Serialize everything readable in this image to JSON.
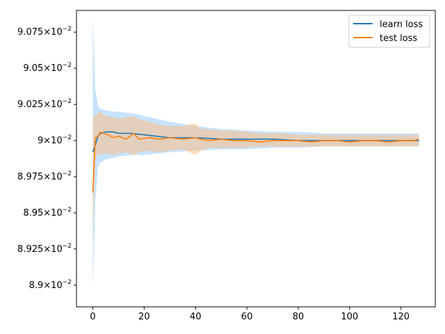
{
  "chart_data": {
    "type": "line",
    "title": "",
    "xlabel": "",
    "ylabel": "",
    "xlim": [
      -6.35,
      133.35
    ],
    "ylim": [
      0.08885,
      0.0909
    ],
    "x_ticks": [
      0,
      20,
      40,
      60,
      80,
      100,
      120
    ],
    "y_ticks": [
      {
        "value": 0.089,
        "mantissa": "8.9",
        "exponent": "−2"
      },
      {
        "value": 0.08925,
        "mantissa": "8.925",
        "exponent": "−2"
      },
      {
        "value": 0.0895,
        "mantissa": "8.95",
        "exponent": "−2"
      },
      {
        "value": 0.08975,
        "mantissa": "8.975",
        "exponent": "−2"
      },
      {
        "value": 0.09,
        "mantissa": "9",
        "exponent": "−2"
      },
      {
        "value": 0.09025,
        "mantissa": "9.025",
        "exponent": "−2"
      },
      {
        "value": 0.0905,
        "mantissa": "9.05",
        "exponent": "−2"
      },
      {
        "value": 0.09075,
        "mantissa": "9.075",
        "exponent": "−2"
      }
    ],
    "y_tick_base": "10",
    "legend_position": "top-right",
    "series": [
      {
        "name": "learn loss",
        "color": "#1f77b4",
        "band_color": "#99ccff",
        "x": [
          0,
          1,
          2,
          3,
          5,
          8,
          10,
          15,
          20,
          25,
          30,
          40,
          50,
          60,
          70,
          80,
          90,
          100,
          110,
          120,
          127
        ],
        "values": [
          0.08992,
          0.08997,
          0.09003,
          0.09005,
          0.09006,
          0.09006,
          0.09005,
          0.09005,
          0.09004,
          0.09003,
          0.09002,
          0.09002,
          0.09001,
          0.09001,
          0.09001,
          0.09,
          0.09,
          0.09,
          0.09,
          0.09,
          0.09
        ],
        "upper": [
          0.09085,
          0.09035,
          0.09024,
          0.09022,
          0.09021,
          0.0902,
          0.0902,
          0.09019,
          0.09017,
          0.09015,
          0.09013,
          0.0901,
          0.09008,
          0.09007,
          0.09006,
          0.09006,
          0.09005,
          0.09005,
          0.09005,
          0.09005,
          0.09005
        ],
        "lower": [
          0.08899,
          0.08958,
          0.08982,
          0.08985,
          0.08987,
          0.08988,
          0.08989,
          0.0899,
          0.0899,
          0.08991,
          0.08992,
          0.08993,
          0.08994,
          0.08994,
          0.08995,
          0.08995,
          0.08996,
          0.08996,
          0.08996,
          0.08996,
          0.08996
        ]
      },
      {
        "name": "test loss",
        "color": "#ff7f0e",
        "band_color": "#ffbb78",
        "x": [
          0,
          1,
          2,
          3,
          4,
          6,
          8,
          10,
          13,
          16,
          18,
          22,
          26,
          30,
          35,
          40,
          42,
          45,
          50,
          55,
          60,
          65,
          70,
          75,
          80,
          85,
          90,
          95,
          100,
          105,
          110,
          115,
          120,
          125,
          127
        ],
        "values": [
          0.08964,
          0.09002,
          0.09003,
          0.09006,
          0.09005,
          0.09004,
          0.09002,
          0.09003,
          0.09001,
          0.09005,
          0.09001,
          0.09002,
          0.09001,
          0.09002,
          0.09001,
          0.09002,
          0.09001,
          0.09,
          0.09001,
          0.09,
          0.09,
          0.08999,
          0.09,
          0.09,
          0.09,
          0.08999,
          0.09,
          0.09,
          0.08999,
          0.09,
          0.09,
          0.08999,
          0.09,
          0.09,
          0.09001
        ],
        "upper": [
          0.09015,
          0.09018,
          0.09019,
          0.0902,
          0.09018,
          0.09017,
          0.09016,
          0.09015,
          0.09016,
          0.09017,
          0.09015,
          0.09013,
          0.09011,
          0.0901,
          0.0901,
          0.09012,
          0.09008,
          0.09008,
          0.09007,
          0.09007,
          0.09006,
          0.09005,
          0.09005,
          0.09005,
          0.09004,
          0.09004,
          0.09004,
          0.09004,
          0.09004,
          0.09004,
          0.09004,
          0.09004,
          0.09004,
          0.09004,
          0.09004
        ],
        "lower": [
          0.08935,
          0.08988,
          0.0899,
          0.0899,
          0.08991,
          0.08991,
          0.0899,
          0.08991,
          0.08992,
          0.0899,
          0.08992,
          0.08993,
          0.08992,
          0.08993,
          0.08994,
          0.0899,
          0.08993,
          0.08995,
          0.08995,
          0.08995,
          0.08995,
          0.08996,
          0.08996,
          0.08996,
          0.08996,
          0.08996,
          0.08996,
          0.08996,
          0.08996,
          0.08996,
          0.08996,
          0.08996,
          0.08996,
          0.08996,
          0.08996
        ]
      }
    ]
  }
}
